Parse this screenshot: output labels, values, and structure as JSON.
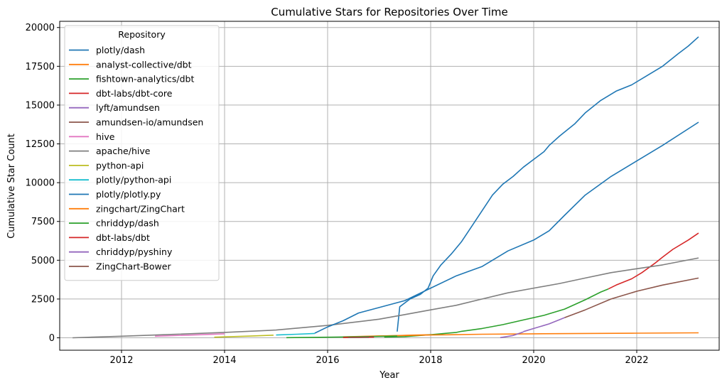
{
  "chart_data": {
    "type": "line",
    "title": "Cumulative Stars for  Repositories Over Time",
    "xlabel": "Year",
    "ylabel": "Cumulative Star Count",
    "xlim": [
      2010.8,
      2023.6
    ],
    "ylim": [
      -800,
      20400
    ],
    "xticks": [
      2012,
      2014,
      2016,
      2018,
      2020,
      2022
    ],
    "yticks": [
      0,
      2500,
      5000,
      7500,
      10000,
      12500,
      15000,
      17500,
      20000
    ],
    "grid": true,
    "legend": {
      "title": "Repository",
      "placement": "top-left"
    },
    "series": [
      {
        "name": "plotly/dash",
        "color": "#1f77b4",
        "x": [
          2017.35,
          2017.4,
          2017.6,
          2017.8,
          2017.95,
          2018.05,
          2018.2,
          2018.4,
          2018.6,
          2018.8,
          2019.0,
          2019.2,
          2019.4,
          2019.6,
          2019.8,
          2020.0,
          2020.2,
          2020.3,
          2020.5,
          2020.8,
          2021.0,
          2021.3,
          2021.6,
          2021.9,
          2022.2,
          2022.5,
          2022.8,
          2023.0,
          2023.2
        ],
        "y": [
          400,
          2000,
          2500,
          2800,
          3200,
          4000,
          4700,
          5400,
          6200,
          7200,
          8200,
          9200,
          9900,
          10400,
          11000,
          11500,
          12000,
          12400,
          13000,
          13800,
          14500,
          15300,
          15900,
          16300,
          16900,
          17500,
          18300,
          18800,
          19400
        ]
      },
      {
        "name": "analyst-collective/dbt",
        "color": "#ff7f0e",
        "x": [
          2016.3,
          2016.7,
          2017.0,
          2017.3,
          2017.6,
          2018.0
        ],
        "y": [
          50,
          80,
          110,
          140,
          170,
          200
        ]
      },
      {
        "name": "fishtown-analytics/dbt",
        "color": "#2ca02c",
        "x": [
          2017.1,
          2017.5,
          2018.0,
          2018.5,
          2018.6,
          2019.0,
          2019.4,
          2019.8,
          2020.2,
          2020.6,
          2021.0,
          2021.3,
          2021.45
        ],
        "y": [
          50,
          80,
          200,
          350,
          420,
          600,
          850,
          1150,
          1450,
          1850,
          2450,
          2950,
          3150
        ]
      },
      {
        "name": "dbt-labs/dbt-core",
        "color": "#d62728",
        "x": [
          2021.45,
          2021.6,
          2021.9,
          2022.1,
          2022.35,
          2022.5,
          2022.7,
          2023.0,
          2023.2
        ],
        "y": [
          3150,
          3400,
          3800,
          4200,
          4800,
          5200,
          5700,
          6300,
          6750
        ]
      },
      {
        "name": "lyft/amundsen",
        "color": "#9467bd",
        "x": [
          2019.8,
          2020.0,
          2020.3,
          2020.6
        ],
        "y": [
          400,
          600,
          900,
          1300
        ]
      },
      {
        "name": "amundsen-io/amundsen",
        "color": "#8c564b",
        "x": [
          2020.6,
          2021.0,
          2021.5,
          2022.0,
          2022.5,
          2023.2
        ],
        "y": [
          1300,
          1800,
          2500,
          3000,
          3400,
          3850
        ]
      },
      {
        "name": "hive",
        "color": "#e377c2",
        "x": [
          2012.65,
          2013.3,
          2014.0
        ],
        "y": [
          100,
          170,
          260
        ]
      },
      {
        "name": "apache/hive",
        "color": "#7f7f7f",
        "x": [
          2011.05,
          2012.0,
          2013.0,
          2014.0,
          2015.0,
          2015.5,
          2016.0,
          2016.5,
          2017.0,
          2017.5,
          2018.0,
          2018.5,
          2019.0,
          2019.5,
          2020.0,
          2020.5,
          2021.0,
          2021.5,
          2022.0,
          2022.5,
          2023.2
        ],
        "y": [
          0,
          100,
          220,
          350,
          500,
          650,
          800,
          1000,
          1200,
          1500,
          1800,
          2100,
          2500,
          2900,
          3200,
          3500,
          3850,
          4200,
          4450,
          4700,
          5150
        ]
      },
      {
        "name": "python-api",
        "color": "#bcbd22",
        "x": [
          2013.8,
          2014.5,
          2014.95
        ],
        "y": [
          40,
          110,
          170
        ]
      },
      {
        "name": "plotly/python-api",
        "color": "#17becf",
        "x": [
          2015.0,
          2015.4,
          2015.75
        ],
        "y": [
          180,
          230,
          280
        ]
      },
      {
        "name": "plotly/plotly.py",
        "color": "#1f77b4",
        "x": [
          2015.75,
          2016.0,
          2016.3,
          2016.6,
          2017.0,
          2017.5,
          2018.0,
          2018.5,
          2019.0,
          2019.5,
          2020.0,
          2020.3,
          2020.6,
          2021.0,
          2021.5,
          2022.0,
          2022.5,
          2023.2
        ],
        "y": [
          300,
          700,
          1100,
          1600,
          1950,
          2400,
          3200,
          4000,
          4600,
          5600,
          6300,
          6900,
          7900,
          9200,
          10400,
          11400,
          12400,
          13900
        ]
      },
      {
        "name": "zingchart/ZingChart",
        "color": "#ff7f0e",
        "x": [
          2016.3,
          2017.0,
          2018.0,
          2019.0,
          2020.0,
          2021.0,
          2022.0,
          2023.2
        ],
        "y": [
          60,
          120,
          180,
          230,
          260,
          280,
          300,
          320
        ]
      },
      {
        "name": "chriddyp/dash",
        "color": "#2ca02c",
        "x": [
          2015.2,
          2016.0,
          2016.5,
          2017.0,
          2017.35
        ],
        "y": [
          10,
          40,
          60,
          90,
          110
        ]
      },
      {
        "name": "dbt-labs/dbt",
        "color": "#d62728",
        "x": [
          2016.3,
          2016.9
        ],
        "y": [
          15,
          45
        ]
      },
      {
        "name": "chriddyp/pyshiny",
        "color": "#9467bd",
        "x": [
          2019.35,
          2019.6,
          2019.8
        ],
        "y": [
          10,
          150,
          380
        ]
      },
      {
        "name": "ZingChart-Bower",
        "color": "#8c564b",
        "x": [
          2016.4,
          2016.8
        ],
        "y": [
          15,
          35
        ]
      }
    ]
  }
}
